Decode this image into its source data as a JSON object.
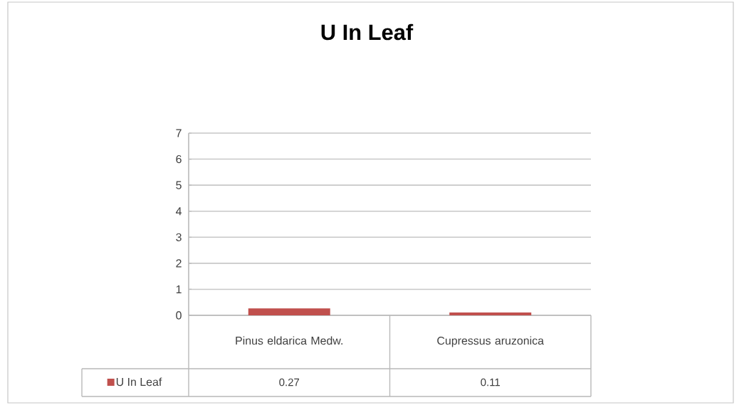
{
  "chart_data": {
    "type": "bar",
    "title": "U In Leaf",
    "categories": [
      "Pinus eldarica Medw.",
      "Cupressus aruzonica"
    ],
    "series": [
      {
        "name": "U In Leaf",
        "color": "#c0504d",
        "values": [
          0.27,
          0.11
        ]
      }
    ],
    "ylim": [
      0,
      7
    ],
    "yticks": [
      0,
      1,
      2,
      3,
      4,
      5,
      6,
      7
    ],
    "grid": "y",
    "legend": "bottom left",
    "data_labels": true
  }
}
